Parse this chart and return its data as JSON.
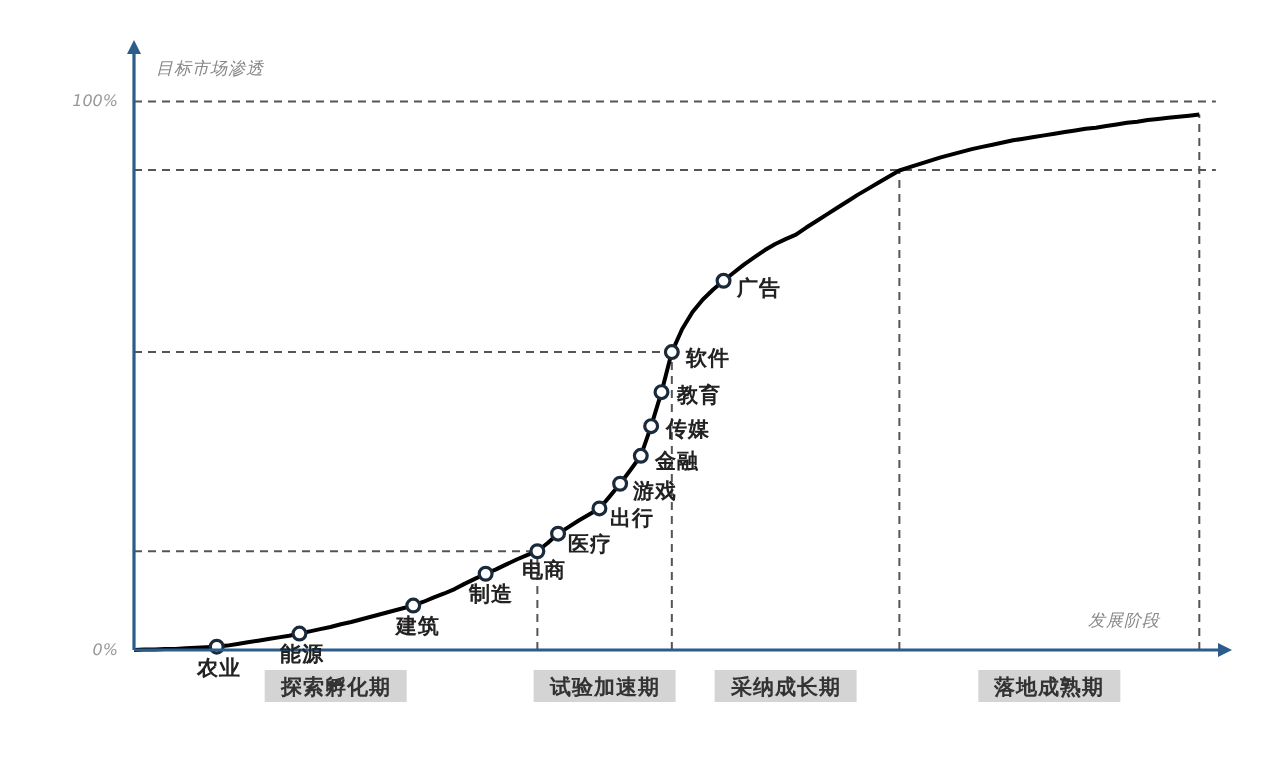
{
  "chart_data": {
    "type": "line",
    "xlabel": "发展阶段",
    "ylabel": "目标市场渗透",
    "ylim": [
      0,
      109
    ],
    "yticks": [
      {
        "value": 0,
        "label": "0%"
      },
      {
        "value": 100,
        "label": "100%"
      }
    ],
    "tick_labels": "y",
    "categories": [
      null,
      null,
      null,
      null,
      null,
      null,
      null,
      null,
      null,
      null,
      null,
      null,
      null,
      null,
      null,
      null,
      null,
      null,
      null,
      null,
      null,
      null,
      null,
      null,
      null,
      null,
      null,
      null,
      null,
      null,
      null,
      null,
      null,
      null,
      null,
      null,
      null,
      null,
      null,
      null,
      null,
      null,
      null,
      null,
      null,
      null,
      null,
      null,
      null,
      null,
      null,
      null,
      null,
      null,
      null,
      null,
      null,
      null,
      null,
      null,
      null,
      null,
      null,
      null,
      null,
      null,
      null,
      null,
      null,
      null,
      null,
      null,
      null,
      null,
      null,
      null,
      null,
      null,
      null,
      null,
      null,
      null,
      null,
      null,
      null,
      null,
      null,
      null,
      null,
      null,
      null,
      null,
      null,
      null,
      null,
      null,
      null,
      null,
      null,
      null,
      null,
      null,
      null,
      null
    ],
    "series": [
      {
        "color": "#000000",
        "values": [
          0,
          0.1,
          0.1,
          0.2,
          0.2,
          0.3,
          0.4,
          0.5,
          0.6,
          0.8,
          1.1,
          1.4,
          1.7,
          2,
          2.3,
          2.6,
          3,
          3.4,
          3.8,
          4.2,
          4.7,
          5.1,
          5.6,
          6.1,
          6.6,
          7.1,
          7.6,
          8.1,
          8.8,
          9.6,
          10.3,
          11.1,
          12.1,
          13,
          13.9,
          14.7,
          15.6,
          16.5,
          17.3,
          18,
          19.5,
          21.2,
          22.4,
          23.6,
          24.7,
          25.8,
          28,
          30.3,
          32.8,
          35.4,
          40.8,
          47,
          54.3,
          58.5,
          61.6,
          63.9,
          65.7,
          67.3,
          68.8,
          70.3,
          71.6,
          72.9,
          74,
          74.9,
          75.7,
          77,
          78.2,
          79.4,
          80.6,
          81.8,
          83,
          84.1,
          85.2,
          86.3,
          87.4,
          88,
          88.6,
          89.2,
          89.8,
          90.3,
          90.8,
          91.3,
          91.7,
          92.1,
          92.5,
          92.9,
          93.2,
          93.5,
          93.8,
          94.1,
          94.4,
          94.7,
          95,
          95.2,
          95.5,
          95.8,
          96.1,
          96.3,
          96.6,
          96.8,
          97,
          97.2,
          97.4,
          97.6
        ]
      },
      {
        "type": "scatter",
        "color": "#1a2a3a",
        "marker": "circle",
        "values": [
          null,
          null,
          null,
          null,
          null,
          null,
          null,
          null,
          0.6,
          null,
          null,
          null,
          null,
          null,
          null,
          null,
          3,
          null,
          null,
          null,
          null,
          null,
          null,
          null,
          null,
          null,
          null,
          8.1,
          null,
          null,
          null,
          null,
          null,
          null,
          13.9,
          null,
          null,
          null,
          null,
          18,
          null,
          21.2,
          null,
          null,
          null,
          25.8,
          null,
          30.3,
          null,
          35.4,
          40.8,
          47,
          54.3,
          null,
          null,
          null,
          null,
          67.3,
          null,
          null,
          null,
          null,
          null,
          null,
          null,
          null,
          null,
          null,
          null,
          null,
          null,
          null,
          null,
          null,
          null,
          null,
          null,
          null,
          null,
          null,
          null,
          null,
          null,
          null,
          null,
          null,
          null,
          null,
          null,
          null,
          null,
          null,
          null,
          null,
          null,
          null,
          null,
          null,
          null,
          null,
          null,
          null,
          null,
          null
        ]
      }
    ],
    "annotations": [
      "农业",
      "能源",
      "建筑",
      "制造",
      "电商",
      "医疗",
      "出行",
      "游戏",
      "金融",
      "传媒",
      "教育",
      "软件",
      "广告",
      "探索孵化期",
      "试验加速期",
      "采纳成长期",
      "落地成熟期"
    ],
    "ref_lines": [
      {
        "axis": "y",
        "value": 18,
        "line_style": "dashed",
        "color": "#555555"
      },
      {
        "axis": "y",
        "value": 54.3,
        "line_style": "dashed",
        "color": "#555555"
      },
      {
        "axis": "y",
        "value": 87.5,
        "line_style": "dashed",
        "color": "#555555"
      },
      {
        "axis": "y",
        "value": 100,
        "line_style": "dashed",
        "color": "#555555"
      }
    ]
  }
}
